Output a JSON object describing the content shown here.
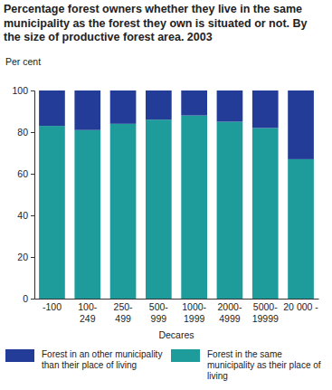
{
  "chart_data": {
    "type": "bar",
    "stacked": true,
    "title": "Percentage forest owners whether they live in the same municipality as the forest they own is situated or not. By the size of productive forest area. 2003",
    "y_label": "Per cent",
    "x_label": "Decares",
    "categories": [
      "-100",
      "100-249",
      "250-499",
      "500-999",
      "1000-1999",
      "2000-4999",
      "5000-19999",
      "20 000 -"
    ],
    "series": [
      {
        "name": "Forest in the same municipality as their place of living",
        "color": "#1e9c9b",
        "values": [
          83,
          81,
          84,
          86,
          88,
          85,
          82,
          67
        ]
      },
      {
        "name": "Forest in an other municipality than their place of living",
        "color": "#223c98",
        "values": [
          17,
          19,
          16,
          14,
          12,
          15,
          18,
          33
        ]
      }
    ],
    "ylim": [
      0,
      100
    ],
    "yticks": [
      0,
      20,
      40,
      60,
      80,
      100
    ],
    "grid": false,
    "legend": "bottom",
    "data_labels": false
  }
}
